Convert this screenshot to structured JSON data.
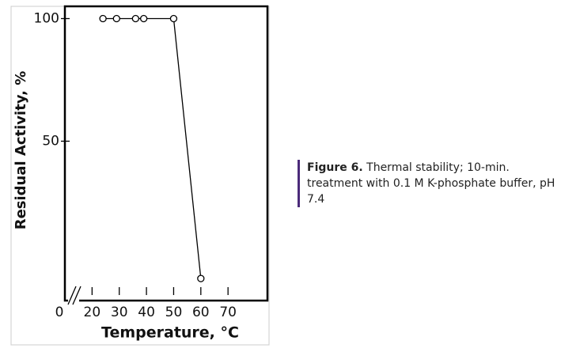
{
  "chart_data": {
    "type": "line",
    "y_label": "Residual Activity, %",
    "x_label": "Temperature, °C",
    "x": [
      24,
      29,
      36,
      39,
      50,
      60
    ],
    "series": [
      {
        "color": "#000000",
        "values": [
          100,
          100,
          100,
          100,
          100,
          -6
        ]
      }
    ],
    "xlim": [
      10,
      84.5
    ],
    "xticks": [
      0,
      20,
      30,
      40,
      50,
      60,
      70
    ],
    "ylim": [
      -15,
      105
    ],
    "yticks": [
      50,
      100
    ],
    "x_axis_break": true
  },
  "caption": {
    "label": "Figure 6.",
    "text": "Thermal stability; 10-min. treatment with 0.1 M K-phosphate buffer, pH 7.4"
  }
}
